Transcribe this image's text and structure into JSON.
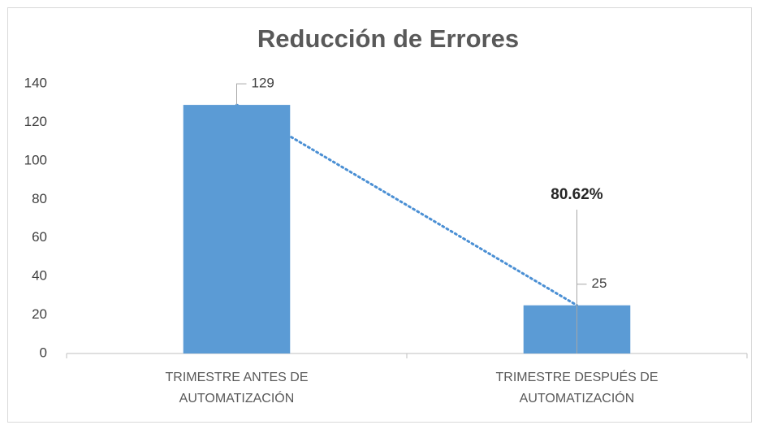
{
  "chart_data": {
    "type": "bar",
    "title": "Reducción de Errores",
    "categories": [
      "TRIMESTRE ANTES DE AUTOMATIZACIÓN",
      "TRIMESTRE DESPUÉS DE AUTOMATIZACIÓN"
    ],
    "values": [
      129,
      25
    ],
    "color": "#5b9bd5",
    "ylim": [
      0,
      140
    ],
    "yticks": [
      0,
      20,
      40,
      60,
      80,
      100,
      120,
      140
    ],
    "grid": false,
    "trendline": true,
    "trendline_color": "#4a8fd4",
    "annotation": "80.62%"
  }
}
